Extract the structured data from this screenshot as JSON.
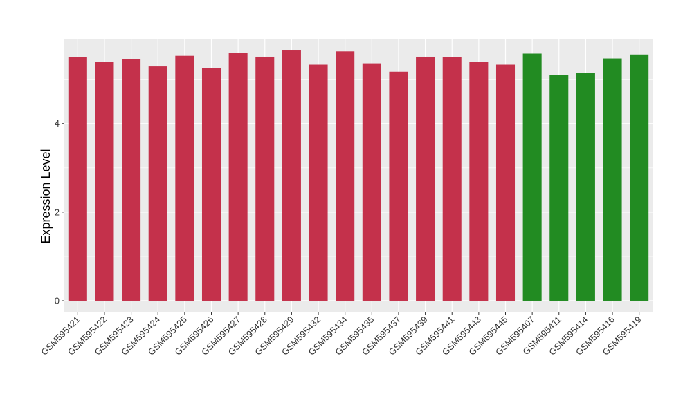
{
  "chart_data": {
    "type": "bar",
    "ylabel": "Expression Level",
    "xlabel": "",
    "ylim": [
      -0.25,
      5.9
    ],
    "yticks": [
      0,
      2,
      4
    ],
    "grid": true,
    "colors": {
      "group_a": "#c4314b",
      "group_b": "#228b22",
      "panel": "#ebebeb",
      "grid": "#ffffff"
    },
    "categories": [
      "GSM595421",
      "GSM595422",
      "GSM595423",
      "GSM595424",
      "GSM595425",
      "GSM595426",
      "GSM595427",
      "GSM595428",
      "GSM595429",
      "GSM595432",
      "GSM595434",
      "GSM595435",
      "GSM595437",
      "GSM595439",
      "GSM595441",
      "GSM595443",
      "GSM595445",
      "GSM595407",
      "GSM595411",
      "GSM595414",
      "GSM595416",
      "GSM595419"
    ],
    "values": [
      5.5,
      5.39,
      5.45,
      5.29,
      5.53,
      5.26,
      5.6,
      5.51,
      5.65,
      5.33,
      5.63,
      5.36,
      5.17,
      5.51,
      5.5,
      5.39,
      5.33,
      5.58,
      5.1,
      5.14,
      5.47,
      5.56
    ],
    "groups": [
      "a",
      "a",
      "a",
      "a",
      "a",
      "a",
      "a",
      "a",
      "a",
      "a",
      "a",
      "a",
      "a",
      "a",
      "a",
      "a",
      "a",
      "b",
      "b",
      "b",
      "b",
      "b"
    ]
  }
}
